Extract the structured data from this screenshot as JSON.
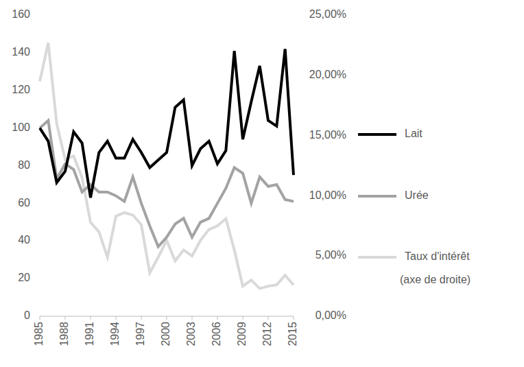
{
  "chart_data": {
    "type": "line",
    "x": [
      1985,
      1986,
      1987,
      1988,
      1989,
      1990,
      1991,
      1992,
      1993,
      1994,
      1995,
      1996,
      1997,
      1998,
      1999,
      2000,
      2001,
      2002,
      2003,
      2004,
      2005,
      2006,
      2007,
      2008,
      2009,
      2010,
      2011,
      2012,
      2013,
      2014,
      2015
    ],
    "xlim": [
      1985,
      2015
    ],
    "xticks": [
      1985,
      1988,
      1991,
      1994,
      1997,
      2000,
      2003,
      2006,
      2009,
      2012,
      2015
    ],
    "ylim": [
      0,
      160
    ],
    "yticks": [
      0,
      20,
      40,
      60,
      80,
      100,
      120,
      140,
      160
    ],
    "y2lim": [
      0,
      25
    ],
    "y2ticks": [
      {
        "value": 0,
        "label": "0,00%"
      },
      {
        "value": 5,
        "label": "5,00%"
      },
      {
        "value": 10,
        "label": "10,00%"
      },
      {
        "value": 15,
        "label": "15,00%"
      },
      {
        "value": 20,
        "label": "20,00%"
      },
      {
        "value": 25,
        "label": "25,00%"
      }
    ],
    "grid": false,
    "legend": "right",
    "series": [
      {
        "name": "Lait",
        "color": "#000000",
        "values": [
          100,
          93,
          71,
          77,
          98,
          92,
          63,
          87,
          93,
          84,
          84,
          94,
          87,
          79,
          83,
          87,
          111,
          115,
          80,
          89,
          93,
          81,
          88,
          141,
          94,
          114,
          133,
          104,
          101,
          142,
          75
        ]
      },
      {
        "name": "Urée",
        "color": "#a3a3a3",
        "values": [
          100,
          104,
          73,
          81,
          78,
          66,
          70,
          66,
          66,
          64,
          61,
          74,
          60,
          48,
          37,
          42,
          49,
          52,
          42,
          50,
          52,
          60,
          68,
          79,
          76,
          60,
          74,
          69,
          70,
          62,
          61
        ]
      },
      {
        "name": "Taux d'intérêt (axe de droite)",
        "color": "#d9d9d9",
        "axis": "y2",
        "values": [
          19.5,
          22.7,
          16,
          13,
          13.3,
          11.5,
          7.8,
          7,
          4.9,
          8.3,
          8.6,
          8.4,
          7.6,
          3.6,
          4.9,
          6.3,
          4.6,
          5.5,
          5,
          6.3,
          7.2,
          7.5,
          8.1,
          5.5,
          2.5,
          3,
          2.3,
          2.5,
          2.6,
          3.4,
          2.6
        ]
      }
    ]
  }
}
